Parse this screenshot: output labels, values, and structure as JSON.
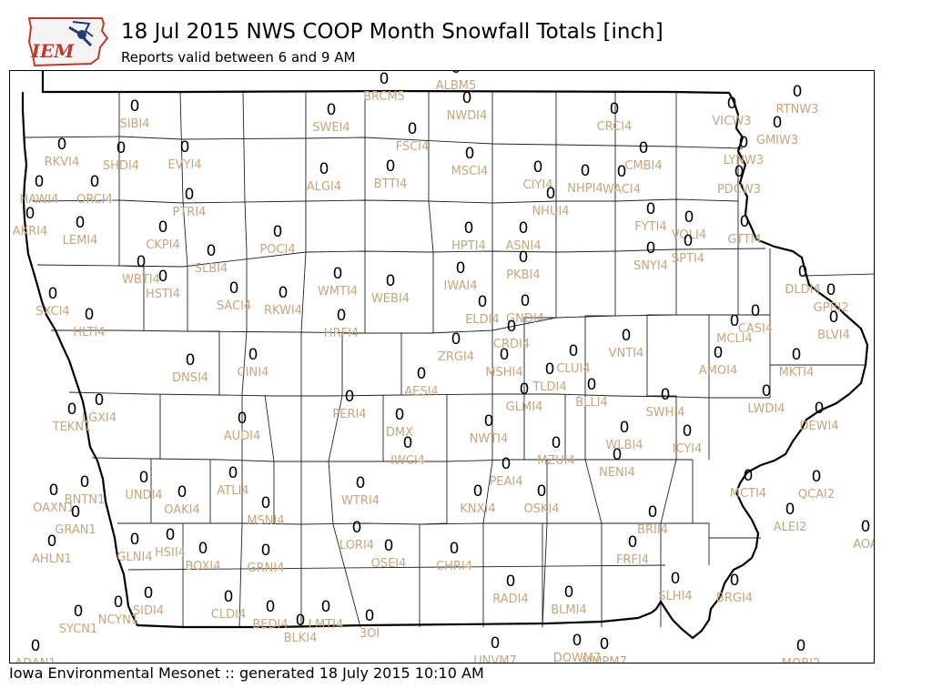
{
  "header": {
    "title": "18 Jul 2015 NWS COOP Month Snowfall Totals [inch]",
    "subtitle": "Reports valid between 6 and 9 AM",
    "logo_text": "IEM"
  },
  "footer": {
    "text": "Iowa Environmental Mesonet :: generated 18 July 2015 10:10 AM"
  },
  "colors": {
    "value_text": "#000000",
    "station_label": "#c8a57d",
    "logo_accent": "#c0392b",
    "logo_blue": "#1f3b73"
  },
  "stations": [
    {
      "id": "ALBM5",
      "value": "0"
    },
    {
      "id": "BRCM5",
      "value": "0"
    },
    {
      "id": "NWDI4",
      "value": "0"
    },
    {
      "id": "SIBI4",
      "value": "0"
    },
    {
      "id": "SWEI4",
      "value": "0"
    },
    {
      "id": "FSCI4",
      "value": "0"
    },
    {
      "id": "CRCI4",
      "value": "0"
    },
    {
      "id": "RTNW3",
      "value": "0"
    },
    {
      "id": "VICW3",
      "value": "0"
    },
    {
      "id": "GMIW3",
      "value": "0"
    },
    {
      "id": "RKVI4",
      "value": "0"
    },
    {
      "id": "SHDI4",
      "value": "0"
    },
    {
      "id": "EVYI4",
      "value": "0"
    },
    {
      "id": "MSCI4",
      "value": "0"
    },
    {
      "id": "CMBI4",
      "value": "0"
    },
    {
      "id": "LYNW3",
      "value": "0"
    },
    {
      "id": "ALGI4",
      "value": "0"
    },
    {
      "id": "BTTI4",
      "value": "0"
    },
    {
      "id": "CIYI4",
      "value": "0"
    },
    {
      "id": "NHPI4",
      "value": "0"
    },
    {
      "id": "WACI4",
      "value": "0"
    },
    {
      "id": "PDCW3",
      "value": "0"
    },
    {
      "id": "HAWI4",
      "value": "0"
    },
    {
      "id": "ORCI4",
      "value": "0"
    },
    {
      "id": "PTRI4",
      "value": "0"
    },
    {
      "id": "NHUI4",
      "value": "0"
    },
    {
      "id": "AKRI4",
      "value": "0"
    },
    {
      "id": "LEMI4",
      "value": "0"
    },
    {
      "id": "CKPI4",
      "value": "0"
    },
    {
      "id": "POCI4",
      "value": "0"
    },
    {
      "id": "HPTI4",
      "value": "0"
    },
    {
      "id": "ASNI4",
      "value": "0"
    },
    {
      "id": "FYTI4",
      "value": "0"
    },
    {
      "id": "VOLI4",
      "value": "0"
    },
    {
      "id": "GTTI4",
      "value": "0"
    },
    {
      "id": "SLBI4",
      "value": "0"
    },
    {
      "id": "SNYI4",
      "value": "0"
    },
    {
      "id": "SPTI4",
      "value": "0"
    },
    {
      "id": "WBTI4",
      "value": "0"
    },
    {
      "id": "HSTI4",
      "value": "0"
    },
    {
      "id": "PKBI4",
      "value": "0"
    },
    {
      "id": "IWAI4",
      "value": "0"
    },
    {
      "id": "DLDI4",
      "value": "0"
    },
    {
      "id": "WMTI4",
      "value": "0"
    },
    {
      "id": "WEBI4",
      "value": "0"
    },
    {
      "id": "SXCI4",
      "value": "0"
    },
    {
      "id": "SACI4",
      "value": "0"
    },
    {
      "id": "RKWI4",
      "value": "0"
    },
    {
      "id": "GPBI2",
      "value": "0"
    },
    {
      "id": "ELDI4",
      "value": "0"
    },
    {
      "id": "GNDI4",
      "value": "0"
    },
    {
      "id": "HLTI4",
      "value": "0"
    },
    {
      "id": "HRFI4",
      "value": "0"
    },
    {
      "id": "CASI4",
      "value": "0"
    },
    {
      "id": "BLVI4",
      "value": "0"
    },
    {
      "id": "MCLI4",
      "value": "0"
    },
    {
      "id": "CRDI4",
      "value": "0"
    },
    {
      "id": "VNTI4",
      "value": "0"
    },
    {
      "id": "ZRGI4",
      "value": "0"
    },
    {
      "id": "AMOI4",
      "value": "0"
    },
    {
      "id": "DNSI4",
      "value": "0"
    },
    {
      "id": "CINI4",
      "value": "0"
    },
    {
      "id": "MSHI4",
      "value": "0"
    },
    {
      "id": "CLUI4",
      "value": "0"
    },
    {
      "id": "MKTI4",
      "value": "0"
    },
    {
      "id": "AESI4",
      "value": "0"
    },
    {
      "id": "TLDI4",
      "value": "0"
    },
    {
      "id": "BLLI4",
      "value": "0"
    },
    {
      "id": "PERI4",
      "value": "0"
    },
    {
      "id": "GLMI4",
      "value": "0"
    },
    {
      "id": "SWHI4",
      "value": "0"
    },
    {
      "id": "LWDI4",
      "value": "0"
    },
    {
      "id": "LGXI4",
      "value": "0"
    },
    {
      "id": "TEKN1",
      "value": "0"
    },
    {
      "id": "DEWI4",
      "value": "0"
    },
    {
      "id": "AUDI4",
      "value": "0"
    },
    {
      "id": "DMX",
      "value": "0"
    },
    {
      "id": "NWTI4",
      "value": "0"
    },
    {
      "id": "WLBI4",
      "value": "0"
    },
    {
      "id": "ICYI4",
      "value": "0"
    },
    {
      "id": "IWCI4",
      "value": "0"
    },
    {
      "id": "MZUI4",
      "value": "0"
    },
    {
      "id": "NENI4",
      "value": "0"
    },
    {
      "id": "PEAI4",
      "value": "0"
    },
    {
      "id": "ATLI4",
      "value": "0"
    },
    {
      "id": "UNDI4",
      "value": "0"
    },
    {
      "id": "MCTI4",
      "value": "0"
    },
    {
      "id": "QCAI2",
      "value": "0"
    },
    {
      "id": "BNTN1",
      "value": "0"
    },
    {
      "id": "OAXN1",
      "value": "0"
    },
    {
      "id": "OAKI4",
      "value": "0"
    },
    {
      "id": "WTRI4",
      "value": "0"
    },
    {
      "id": "KNXI4",
      "value": "0"
    },
    {
      "id": "OSKI4",
      "value": "0"
    },
    {
      "id": "MSNI4",
      "value": "0"
    },
    {
      "id": "GRAN1",
      "value": "0"
    },
    {
      "id": "ALEI2",
      "value": "0"
    },
    {
      "id": "BRII4",
      "value": "0"
    },
    {
      "id": "AOA",
      "value": "0"
    },
    {
      "id": "AHLN1",
      "value": "0"
    },
    {
      "id": "GLNI4",
      "value": "0"
    },
    {
      "id": "HSII4",
      "value": "0"
    },
    {
      "id": "LORI4",
      "value": "0"
    },
    {
      "id": "BOXI4",
      "value": "0"
    },
    {
      "id": "GRNI4",
      "value": "0"
    },
    {
      "id": "OSEI4",
      "value": "0"
    },
    {
      "id": "CHRI4",
      "value": "0"
    },
    {
      "id": "FRFI4",
      "value": "0"
    },
    {
      "id": "RADI4",
      "value": "0"
    },
    {
      "id": "BLMI4",
      "value": "0"
    },
    {
      "id": "SLHI4",
      "value": "0"
    },
    {
      "id": "BRGI4",
      "value": "0"
    },
    {
      "id": "NCYN1",
      "value": "0"
    },
    {
      "id": "SIDI4",
      "value": "0"
    },
    {
      "id": "CLDI4",
      "value": "0"
    },
    {
      "id": "BEDI4",
      "value": "0"
    },
    {
      "id": "LMTI4",
      "value": "0"
    },
    {
      "id": "3OI",
      "value": "0"
    },
    {
      "id": "SYCN1",
      "value": "0"
    },
    {
      "id": "BLKI4",
      "value": "0"
    },
    {
      "id": "ADAN1",
      "value": "0"
    },
    {
      "id": "UNVM7",
      "value": "0"
    },
    {
      "id": "DOWM7",
      "value": "0"
    },
    {
      "id": "MMPM7",
      "value": "0"
    },
    {
      "id": "MOBI2",
      "value": "0"
    }
  ]
}
